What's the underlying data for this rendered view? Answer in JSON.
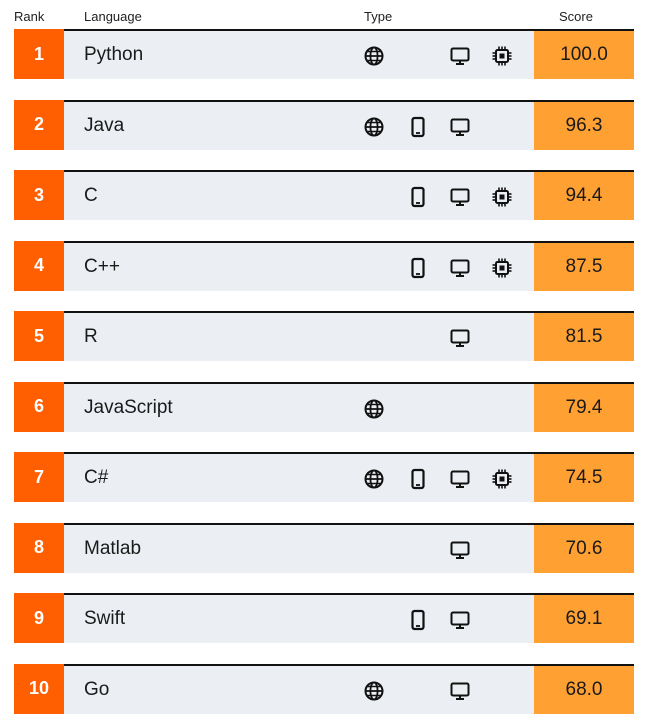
{
  "header": {
    "rank": "Rank",
    "language": "Language",
    "type": "Type",
    "score": "Score"
  },
  "rows": [
    {
      "rank": "1",
      "language": "Python",
      "score": "100.0",
      "types": [
        "web",
        "desktop",
        "embedded"
      ]
    },
    {
      "rank": "2",
      "language": "Java",
      "score": "96.3",
      "types": [
        "web",
        "mobile",
        "desktop"
      ]
    },
    {
      "rank": "3",
      "language": "C",
      "score": "94.4",
      "types": [
        "mobile",
        "desktop",
        "embedded"
      ]
    },
    {
      "rank": "4",
      "language": "C++",
      "score": "87.5",
      "types": [
        "mobile",
        "desktop",
        "embedded"
      ]
    },
    {
      "rank": "5",
      "language": "R",
      "score": "81.5",
      "types": [
        "desktop"
      ]
    },
    {
      "rank": "6",
      "language": "JavaScript",
      "score": "79.4",
      "types": [
        "web"
      ]
    },
    {
      "rank": "7",
      "language": "C#",
      "score": "74.5",
      "types": [
        "web",
        "mobile",
        "desktop",
        "embedded"
      ]
    },
    {
      "rank": "8",
      "language": "Matlab",
      "score": "70.6",
      "types": [
        "desktop"
      ]
    },
    {
      "rank": "9",
      "language": "Swift",
      "score": "69.1",
      "types": [
        "mobile",
        "desktop"
      ]
    },
    {
      "rank": "10",
      "language": "Go",
      "score": "68.0",
      "types": [
        "web",
        "desktop"
      ]
    }
  ],
  "icons": {
    "web": "globe-icon",
    "mobile": "smartphone-icon",
    "desktop": "monitor-icon",
    "embedded": "chip-icon"
  },
  "colors": {
    "rank_bg": "#ff5f00",
    "score_bg": "#ffa033",
    "row_bg": "#ebeff4"
  }
}
